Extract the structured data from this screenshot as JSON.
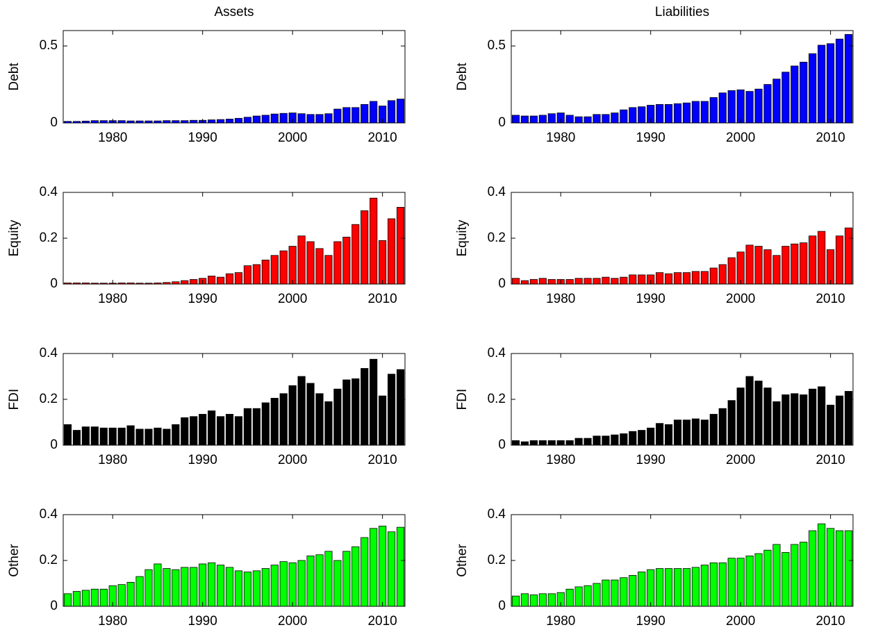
{
  "chart_data": [
    {
      "type": "bar",
      "title": "Assets",
      "ylabel": "Debt",
      "color": "#0000ff",
      "x": [
        1975,
        1976,
        1977,
        1978,
        1979,
        1980,
        1981,
        1982,
        1983,
        1984,
        1985,
        1986,
        1987,
        1988,
        1989,
        1990,
        1991,
        1992,
        1993,
        1994,
        1995,
        1996,
        1997,
        1998,
        1999,
        2000,
        2001,
        2002,
        2003,
        2004,
        2005,
        2006,
        2007,
        2008,
        2009,
        2010,
        2011,
        2012
      ],
      "values": [
        0.01,
        0.01,
        0.012,
        0.015,
        0.015,
        0.015,
        0.015,
        0.013,
        0.013,
        0.013,
        0.013,
        0.015,
        0.015,
        0.015,
        0.017,
        0.017,
        0.02,
        0.022,
        0.025,
        0.03,
        0.037,
        0.045,
        0.05,
        0.058,
        0.062,
        0.065,
        0.06,
        0.055,
        0.055,
        0.06,
        0.09,
        0.1,
        0.1,
        0.12,
        0.14,
        0.11,
        0.145,
        0.155
      ],
      "xlim": [
        1974.5,
        2012.5
      ],
      "xticks": [
        1980,
        1990,
        2000,
        2010
      ],
      "ylim": [
        0,
        0.6
      ],
      "yticks": [
        0,
        0.5
      ]
    },
    {
      "type": "bar",
      "title": "Liabilities",
      "ylabel": "Debt",
      "color": "#0000ff",
      "x": [
        1975,
        1976,
        1977,
        1978,
        1979,
        1980,
        1981,
        1982,
        1983,
        1984,
        1985,
        1986,
        1987,
        1988,
        1989,
        1990,
        1991,
        1992,
        1993,
        1994,
        1995,
        1996,
        1997,
        1998,
        1999,
        2000,
        2001,
        2002,
        2003,
        2004,
        2005,
        2006,
        2007,
        2008,
        2009,
        2010,
        2011,
        2012
      ],
      "values": [
        0.05,
        0.045,
        0.045,
        0.05,
        0.06,
        0.065,
        0.05,
        0.04,
        0.04,
        0.055,
        0.055,
        0.065,
        0.085,
        0.1,
        0.105,
        0.115,
        0.12,
        0.12,
        0.125,
        0.13,
        0.14,
        0.14,
        0.165,
        0.195,
        0.21,
        0.215,
        0.205,
        0.22,
        0.25,
        0.285,
        0.33,
        0.37,
        0.395,
        0.45,
        0.505,
        0.515,
        0.545,
        0.575
      ],
      "xlim": [
        1974.5,
        2012.5
      ],
      "xticks": [
        1980,
        1990,
        2000,
        2010
      ],
      "ylim": [
        0,
        0.6
      ],
      "yticks": [
        0,
        0.5
      ]
    },
    {
      "type": "bar",
      "ylabel": "Equity",
      "color": "#ff0000",
      "x": [
        1975,
        1976,
        1977,
        1978,
        1979,
        1980,
        1981,
        1982,
        1983,
        1984,
        1985,
        1986,
        1987,
        1988,
        1989,
        1990,
        1991,
        1992,
        1993,
        1994,
        1995,
        1996,
        1997,
        1998,
        1999,
        2000,
        2001,
        2002,
        2003,
        2004,
        2005,
        2006,
        2007,
        2008,
        2009,
        2010,
        2011,
        2012
      ],
      "values": [
        0.005,
        0.005,
        0.005,
        0.004,
        0.004,
        0.004,
        0.005,
        0.005,
        0.004,
        0.004,
        0.005,
        0.007,
        0.01,
        0.015,
        0.02,
        0.025,
        0.035,
        0.03,
        0.045,
        0.05,
        0.08,
        0.085,
        0.105,
        0.125,
        0.145,
        0.165,
        0.21,
        0.185,
        0.155,
        0.125,
        0.185,
        0.205,
        0.26,
        0.32,
        0.375,
        0.19,
        0.285,
        0.335
      ],
      "xlim": [
        1974.5,
        2012.5
      ],
      "xticks": [
        1980,
        1990,
        2000,
        2010
      ],
      "ylim": [
        0,
        0.4
      ],
      "yticks": [
        0,
        0.2,
        0.4
      ]
    },
    {
      "type": "bar",
      "ylabel": "Equity",
      "color": "#ff0000",
      "x": [
        1975,
        1976,
        1977,
        1978,
        1979,
        1980,
        1981,
        1982,
        1983,
        1984,
        1985,
        1986,
        1987,
        1988,
        1989,
        1990,
        1991,
        1992,
        1993,
        1994,
        1995,
        1996,
        1997,
        1998,
        1999,
        2000,
        2001,
        2002,
        2003,
        2004,
        2005,
        2006,
        2007,
        2008,
        2009,
        2010,
        2011,
        2012
      ],
      "values": [
        0.025,
        0.015,
        0.02,
        0.025,
        0.02,
        0.02,
        0.02,
        0.025,
        0.025,
        0.025,
        0.03,
        0.025,
        0.03,
        0.04,
        0.04,
        0.04,
        0.05,
        0.045,
        0.05,
        0.05,
        0.055,
        0.055,
        0.07,
        0.085,
        0.115,
        0.14,
        0.17,
        0.165,
        0.15,
        0.125,
        0.165,
        0.175,
        0.18,
        0.21,
        0.23,
        0.15,
        0.21,
        0.245
      ],
      "xlim": [
        1974.5,
        2012.5
      ],
      "xticks": [
        1980,
        1990,
        2000,
        2010
      ],
      "ylim": [
        0,
        0.4
      ],
      "yticks": [
        0,
        0.2,
        0.4
      ]
    },
    {
      "type": "bar",
      "ylabel": "FDI",
      "color": "#000000",
      "x": [
        1975,
        1976,
        1977,
        1978,
        1979,
        1980,
        1981,
        1982,
        1983,
        1984,
        1985,
        1986,
        1987,
        1988,
        1989,
        1990,
        1991,
        1992,
        1993,
        1994,
        1995,
        1996,
        1997,
        1998,
        1999,
        2000,
        2001,
        2002,
        2003,
        2004,
        2005,
        2006,
        2007,
        2008,
        2009,
        2010,
        2011,
        2012
      ],
      "values": [
        0.09,
        0.065,
        0.08,
        0.08,
        0.075,
        0.075,
        0.075,
        0.085,
        0.07,
        0.07,
        0.075,
        0.07,
        0.09,
        0.12,
        0.125,
        0.135,
        0.15,
        0.125,
        0.135,
        0.125,
        0.16,
        0.16,
        0.185,
        0.205,
        0.225,
        0.26,
        0.3,
        0.27,
        0.225,
        0.19,
        0.245,
        0.285,
        0.29,
        0.335,
        0.375,
        0.215,
        0.31,
        0.33
      ],
      "xlim": [
        1974.5,
        2012.5
      ],
      "xticks": [
        1980,
        1990,
        2000,
        2010
      ],
      "ylim": [
        0,
        0.4
      ],
      "yticks": [
        0,
        0.2,
        0.4
      ]
    },
    {
      "type": "bar",
      "ylabel": "FDI",
      "color": "#000000",
      "x": [
        1975,
        1976,
        1977,
        1978,
        1979,
        1980,
        1981,
        1982,
        1983,
        1984,
        1985,
        1986,
        1987,
        1988,
        1989,
        1990,
        1991,
        1992,
        1993,
        1994,
        1995,
        1996,
        1997,
        1998,
        1999,
        2000,
        2001,
        2002,
        2003,
        2004,
        2005,
        2006,
        2007,
        2008,
        2009,
        2010,
        2011,
        2012
      ],
      "values": [
        0.02,
        0.015,
        0.02,
        0.02,
        0.02,
        0.02,
        0.02,
        0.03,
        0.03,
        0.04,
        0.04,
        0.045,
        0.05,
        0.06,
        0.065,
        0.075,
        0.095,
        0.09,
        0.11,
        0.11,
        0.115,
        0.11,
        0.135,
        0.16,
        0.195,
        0.25,
        0.3,
        0.28,
        0.25,
        0.19,
        0.22,
        0.225,
        0.22,
        0.245,
        0.255,
        0.175,
        0.215,
        0.235
      ],
      "xlim": [
        1974.5,
        2012.5
      ],
      "xticks": [
        1980,
        1990,
        2000,
        2010
      ],
      "ylim": [
        0,
        0.4
      ],
      "yticks": [
        0,
        0.2,
        0.4
      ]
    },
    {
      "type": "bar",
      "ylabel": "Other",
      "color": "#00ff00",
      "x": [
        1975,
        1976,
        1977,
        1978,
        1979,
        1980,
        1981,
        1982,
        1983,
        1984,
        1985,
        1986,
        1987,
        1988,
        1989,
        1990,
        1991,
        1992,
        1993,
        1994,
        1995,
        1996,
        1997,
        1998,
        1999,
        2000,
        2001,
        2002,
        2003,
        2004,
        2005,
        2006,
        2007,
        2008,
        2009,
        2010,
        2011,
        2012
      ],
      "values": [
        0.055,
        0.065,
        0.07,
        0.075,
        0.075,
        0.09,
        0.095,
        0.105,
        0.13,
        0.16,
        0.185,
        0.165,
        0.16,
        0.17,
        0.17,
        0.185,
        0.19,
        0.18,
        0.17,
        0.155,
        0.15,
        0.155,
        0.165,
        0.18,
        0.195,
        0.19,
        0.2,
        0.22,
        0.225,
        0.24,
        0.2,
        0.24,
        0.26,
        0.3,
        0.34,
        0.35,
        0.325,
        0.345
      ],
      "xlim": [
        1974.5,
        2012.5
      ],
      "xticks": [
        1980,
        1990,
        2000,
        2010
      ],
      "ylim": [
        0,
        0.4
      ],
      "yticks": [
        0,
        0.2,
        0.4
      ]
    },
    {
      "type": "bar",
      "ylabel": "Other",
      "color": "#00ff00",
      "x": [
        1975,
        1976,
        1977,
        1978,
        1979,
        1980,
        1981,
        1982,
        1983,
        1984,
        1985,
        1986,
        1987,
        1988,
        1989,
        1990,
        1991,
        1992,
        1993,
        1994,
        1995,
        1996,
        1997,
        1998,
        1999,
        2000,
        2001,
        2002,
        2003,
        2004,
        2005,
        2006,
        2007,
        2008,
        2009,
        2010,
        2011,
        2012
      ],
      "values": [
        0.045,
        0.055,
        0.05,
        0.055,
        0.055,
        0.06,
        0.075,
        0.085,
        0.09,
        0.1,
        0.115,
        0.115,
        0.125,
        0.135,
        0.15,
        0.16,
        0.165,
        0.165,
        0.165,
        0.165,
        0.17,
        0.18,
        0.19,
        0.19,
        0.21,
        0.21,
        0.22,
        0.23,
        0.245,
        0.27,
        0.235,
        0.27,
        0.28,
        0.33,
        0.36,
        0.34,
        0.33,
        0.33
      ],
      "xlim": [
        1974.5,
        2012.5
      ],
      "xticks": [
        1980,
        1990,
        2000,
        2010
      ],
      "ylim": [
        0,
        0.4
      ],
      "yticks": [
        0,
        0.2,
        0.4
      ]
    }
  ]
}
